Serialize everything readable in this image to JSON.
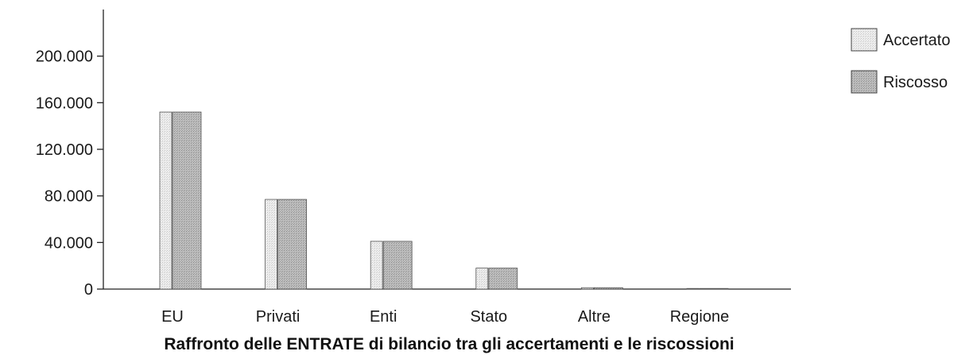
{
  "chart_data": {
    "type": "bar",
    "title": "Raffronto delle ENTRATE di bilancio tra gli accertamenti e le riscossioni",
    "xlabel": "",
    "ylabel": "",
    "categories": [
      "EU",
      "Privati",
      "Enti",
      "Stato",
      "Altre",
      "Regione"
    ],
    "series": [
      {
        "name": "Accertato",
        "values": [
          152000,
          77000,
          41000,
          18000,
          1200,
          500
        ],
        "color": "#e6e6e6"
      },
      {
        "name": "Riscosso",
        "values": [
          152000,
          77000,
          41000,
          18000,
          1200,
          500
        ],
        "color": "#b4b4b4"
      }
    ],
    "ylim": [
      0,
      240000
    ],
    "yticks": [
      0,
      40000,
      80000,
      120000,
      160000,
      200000
    ],
    "ytick_labels": [
      "0",
      "40.000",
      "80.000",
      "120.000",
      "160.000",
      "200.000"
    ],
    "grid": false,
    "legend_position": "top-right"
  }
}
